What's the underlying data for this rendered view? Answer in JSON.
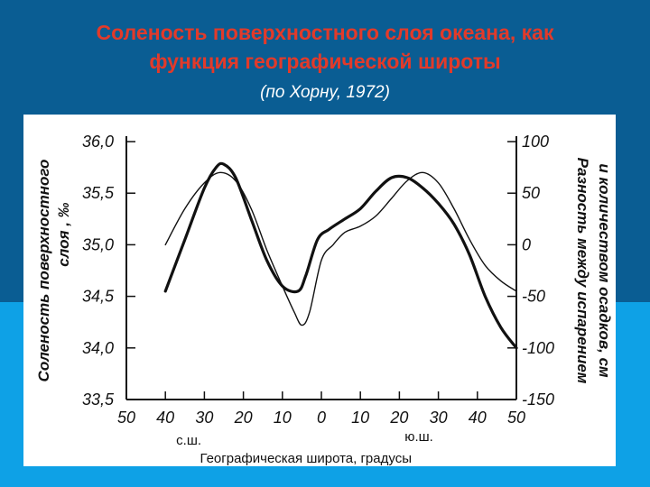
{
  "slide": {
    "title_line1": "Соленость поверхностного слоя океана, как",
    "title_line2": "функция географической широты",
    "subtitle": "(по Хорну, 1972)",
    "colors": {
      "title": "#e23a2a",
      "bg_dark": "#0a5d93",
      "bg_light": "#0ea1e6"
    }
  },
  "chart_data": {
    "type": "line",
    "xlabel": "Географическая широта, градусы",
    "hemisphere_labels": {
      "north": "с.ш.",
      "south": "ю.ш."
    },
    "ylabel_left_line1": "Соленость поверхностного",
    "ylabel_left_line2": "слоя , ‰",
    "ylabel_right_line1": "Разность между испарением",
    "ylabel_right_line2": "и количеством осадков, см",
    "x_ticks": [
      "50",
      "40",
      "30",
      "20",
      "10",
      "0",
      "10",
      "20",
      "30",
      "40",
      "50"
    ],
    "x_tick_values": [
      -50,
      -40,
      -30,
      -20,
      -10,
      0,
      10,
      20,
      30,
      40,
      50
    ],
    "y_left_ticks": [
      "36,0",
      "35,5",
      "35,0",
      "34,5",
      "34,0",
      "33,5"
    ],
    "y_left_tick_values": [
      36.0,
      35.5,
      35.0,
      34.5,
      34.0,
      33.5
    ],
    "y_right_ticks": [
      "100",
      "50",
      "0",
      "-50",
      "-100",
      "-150"
    ],
    "y_right_tick_values": [
      100,
      50,
      0,
      -50,
      -100,
      -150
    ],
    "ylim_left": [
      33.5,
      36.0
    ],
    "ylim_right": [
      -150,
      100
    ],
    "xlim": [
      -50,
      50
    ],
    "series": [
      {
        "axis": "left",
        "style": "thick",
        "x": [
          -40,
          -35,
          -30,
          -27,
          -25,
          -22,
          -18,
          -14,
          -10,
          -6,
          -4,
          -1,
          2,
          6,
          10,
          14,
          18,
          22,
          26,
          30,
          34,
          38,
          42,
          46,
          50
        ],
        "y": [
          34.55,
          35.05,
          35.55,
          35.75,
          35.78,
          35.65,
          35.25,
          34.85,
          34.6,
          34.55,
          34.7,
          35.05,
          35.15,
          35.25,
          35.35,
          35.52,
          35.65,
          35.65,
          35.55,
          35.4,
          35.2,
          34.9,
          34.5,
          34.2,
          34.0
        ]
      },
      {
        "axis": "right",
        "style": "thin",
        "x": [
          -40,
          -35,
          -30,
          -26,
          -22,
          -18,
          -14,
          -10,
          -7,
          -5,
          -3,
          0,
          3,
          6,
          10,
          14,
          18,
          22,
          26,
          30,
          34,
          38,
          42,
          46,
          50
        ],
        "y": [
          0,
          35,
          60,
          70,
          62,
          35,
          -5,
          -40,
          -65,
          -78,
          -65,
          -15,
          0,
          12,
          18,
          28,
          45,
          62,
          70,
          60,
          35,
          5,
          -20,
          -35,
          -45
        ]
      }
    ]
  }
}
